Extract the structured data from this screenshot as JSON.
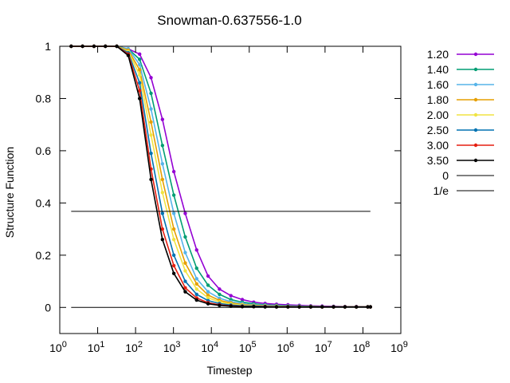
{
  "chart_data": {
    "type": "line",
    "title": "Snowman-0.637556-1.0",
    "xlabel": "Timestep",
    "ylabel": "Structure Function",
    "xscale": "log",
    "xlim": [
      1,
      1000000000
    ],
    "ylim": [
      -0.1,
      1.0
    ],
    "x_ticks": [
      {
        "value": 1,
        "mantissa": "10",
        "exp": "0"
      },
      {
        "value": 10,
        "mantissa": "10",
        "exp": "1"
      },
      {
        "value": 100,
        "mantissa": "10",
        "exp": "2"
      },
      {
        "value": 1000,
        "mantissa": "10",
        "exp": "3"
      },
      {
        "value": 10000,
        "mantissa": "10",
        "exp": "4"
      },
      {
        "value": 100000,
        "mantissa": "10",
        "exp": "5"
      },
      {
        "value": 1000000,
        "mantissa": "10",
        "exp": "6"
      },
      {
        "value": 10000000,
        "mantissa": "10",
        "exp": "7"
      },
      {
        "value": 100000000,
        "mantissa": "10",
        "exp": "8"
      },
      {
        "value": 1000000000,
        "mantissa": "10",
        "exp": "9"
      }
    ],
    "y_ticks": [
      {
        "value": 0,
        "label": "0"
      },
      {
        "value": 0.2,
        "label": "0.2"
      },
      {
        "value": 0.4,
        "label": "0.4"
      },
      {
        "value": 0.6,
        "label": "0.6"
      },
      {
        "value": 0.8,
        "label": "0.8"
      },
      {
        "value": 1,
        "label": "1"
      }
    ],
    "x": [
      2,
      4,
      8,
      16,
      32,
      64,
      128,
      256,
      512,
      1024,
      2048,
      4096,
      8192,
      16384,
      32768,
      65536,
      131072,
      262144,
      524288,
      1048576,
      2097152,
      4194304,
      8388608,
      16777216,
      33554432,
      67108864,
      134217728,
      157286400
    ],
    "series": [
      {
        "name": "1.20",
        "color": "#9400d3",
        "values": [
          1.0,
          1.0,
          1.0,
          1.0,
          1.0,
          0.99,
          0.97,
          0.88,
          0.72,
          0.52,
          0.36,
          0.22,
          0.12,
          0.07,
          0.045,
          0.03,
          0.02,
          0.015,
          0.012,
          0.01,
          0.008,
          0.006,
          0.005,
          0.004,
          0.003,
          0.003,
          0.002,
          0.002
        ]
      },
      {
        "name": "1.40",
        "color": "#009e73",
        "values": [
          1.0,
          1.0,
          1.0,
          1.0,
          1.0,
          0.99,
          0.95,
          0.82,
          0.62,
          0.43,
          0.27,
          0.15,
          0.085,
          0.05,
          0.03,
          0.02,
          0.014,
          0.01,
          0.008,
          0.006,
          0.005,
          0.004,
          0.003,
          0.003,
          0.002,
          0.002,
          0.002,
          0.002
        ]
      },
      {
        "name": "1.60",
        "color": "#56b4e9",
        "values": [
          1.0,
          1.0,
          1.0,
          1.0,
          1.0,
          0.99,
          0.93,
          0.76,
          0.55,
          0.36,
          0.21,
          0.11,
          0.06,
          0.035,
          0.022,
          0.015,
          0.01,
          0.008,
          0.006,
          0.005,
          0.004,
          0.003,
          0.003,
          0.002,
          0.002,
          0.002,
          0.002,
          0.002
        ]
      },
      {
        "name": "1.80",
        "color": "#e69f00",
        "values": [
          1.0,
          1.0,
          1.0,
          1.0,
          1.0,
          0.985,
          0.91,
          0.71,
          0.49,
          0.3,
          0.17,
          0.09,
          0.047,
          0.027,
          0.017,
          0.011,
          0.008,
          0.006,
          0.005,
          0.004,
          0.003,
          0.003,
          0.002,
          0.002,
          0.002,
          0.002,
          0.002,
          0.002
        ]
      },
      {
        "name": "2.00",
        "color": "#f0e442",
        "values": [
          1.0,
          1.0,
          1.0,
          1.0,
          1.0,
          0.98,
          0.89,
          0.66,
          0.44,
          0.26,
          0.14,
          0.07,
          0.037,
          0.021,
          0.013,
          0.009,
          0.006,
          0.005,
          0.004,
          0.003,
          0.003,
          0.002,
          0.002,
          0.002,
          0.002,
          0.002,
          0.002,
          0.002
        ]
      },
      {
        "name": "2.50",
        "color": "#0072b2",
        "values": [
          1.0,
          1.0,
          1.0,
          1.0,
          1.0,
          0.975,
          0.86,
          0.59,
          0.36,
          0.2,
          0.1,
          0.05,
          0.026,
          0.015,
          0.009,
          0.006,
          0.005,
          0.004,
          0.003,
          0.003,
          0.002,
          0.002,
          0.002,
          0.002,
          0.002,
          0.002,
          0.002,
          0.002
        ]
      },
      {
        "name": "3.00",
        "color": "#e51e10",
        "values": [
          1.0,
          1.0,
          1.0,
          1.0,
          1.0,
          0.97,
          0.83,
          0.53,
          0.3,
          0.16,
          0.075,
          0.036,
          0.018,
          0.01,
          0.006,
          0.004,
          0.003,
          0.003,
          0.002,
          0.002,
          0.002,
          0.002,
          0.002,
          0.002,
          0.002,
          0.002,
          0.002,
          0.002
        ]
      },
      {
        "name": "3.50",
        "color": "#000000",
        "values": [
          1.0,
          1.0,
          1.0,
          1.0,
          1.0,
          0.965,
          0.8,
          0.49,
          0.26,
          0.13,
          0.06,
          0.028,
          0.014,
          0.008,
          0.005,
          0.003,
          0.003,
          0.002,
          0.002,
          0.002,
          0.002,
          0.002,
          0.002,
          0.002,
          0.002,
          0.002,
          0.002,
          0.002
        ]
      }
    ],
    "reference_lines": [
      {
        "name": "0",
        "y": 0,
        "color": "#000000",
        "x_range": [
          2,
          157286400
        ]
      },
      {
        "name": "1/e",
        "y": 0.3679,
        "color": "#000000",
        "x_range": [
          2,
          157286400
        ]
      }
    ],
    "grid": false,
    "legend_position": "outside-right"
  }
}
